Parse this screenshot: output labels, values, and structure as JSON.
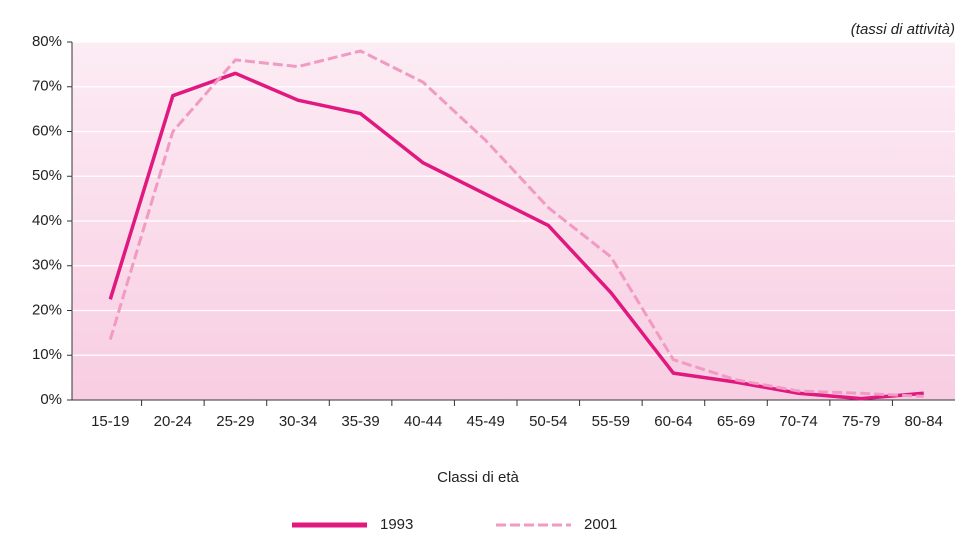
{
  "chart_data": {
    "type": "line",
    "annotation": "(tassi di attività)",
    "x_label": "Classi di età",
    "categories": [
      "15-19",
      "20-24",
      "25-29",
      "30-34",
      "35-39",
      "40-44",
      "45-49",
      "50-54",
      "55-59",
      "60-64",
      "65-69",
      "70-74",
      "75-79",
      "80-84"
    ],
    "series": [
      {
        "name": "1993",
        "color": "#e0187f",
        "style": "solid",
        "values": [
          22.5,
          68,
          73,
          67,
          64,
          53,
          46,
          39,
          24,
          6,
          4,
          1.5,
          0.3,
          1.5
        ]
      },
      {
        "name": "2001",
        "color": "#f09ac4",
        "style": "dashed",
        "values": [
          13.5,
          60,
          76,
          74.5,
          78,
          71,
          58,
          43,
          32,
          9,
          4.5,
          2,
          1.5,
          0.8
        ]
      }
    ],
    "ylim": [
      0,
      80
    ],
    "yticks": [
      {
        "value": 0,
        "label": "0%"
      },
      {
        "value": 10,
        "label": "10%"
      },
      {
        "value": 20,
        "label": "20%"
      },
      {
        "value": 30,
        "label": "30%"
      },
      {
        "value": 40,
        "label": "40%"
      },
      {
        "value": 50,
        "label": "50%"
      },
      {
        "value": 60,
        "label": "60%"
      },
      {
        "value": 70,
        "label": "70%"
      },
      {
        "value": 80,
        "label": "80%"
      }
    ],
    "grid": true
  }
}
